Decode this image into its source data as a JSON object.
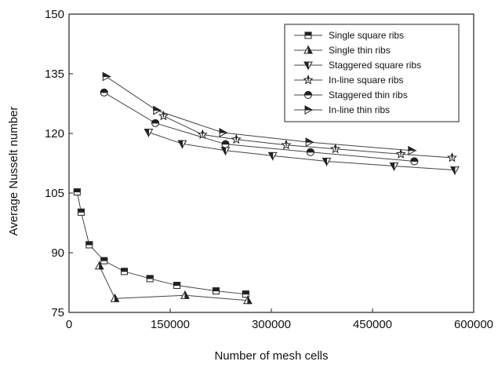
{
  "chart_data": {
    "type": "line",
    "xlabel": "Number of mesh cells",
    "ylabel": "Average Nusselt number",
    "xlim": [
      0,
      600000
    ],
    "ylim": [
      75,
      150
    ],
    "xticks": [
      0,
      150000,
      300000,
      450000,
      600000
    ],
    "yticks": [
      75,
      90,
      105,
      120,
      135,
      150
    ],
    "xtick_labels": [
      "0",
      "150000",
      "300000",
      "450000",
      "600000"
    ],
    "ytick_labels": [
      "75",
      "90",
      "105",
      "120",
      "135",
      "150"
    ],
    "grid": false,
    "legend_position": "top-right",
    "series": [
      {
        "name": "Single square ribs",
        "marker": "square",
        "x": [
          12000,
          18000,
          30000,
          52000,
          82000,
          120000,
          160000,
          218000,
          262000
        ],
        "y": [
          105.3,
          100.2,
          92.0,
          88.0,
          85.3,
          83.5,
          81.8,
          80.4,
          79.6
        ]
      },
      {
        "name": "Single thin ribs",
        "marker": "triangle-up",
        "x": [
          45000,
          68000,
          172000,
          265000
        ],
        "y": [
          86.7,
          78.5,
          79.3,
          78.0
        ]
      },
      {
        "name": "Staggered square ribs",
        "marker": "triangle-down",
        "x": [
          118000,
          168000,
          232000,
          302000,
          382000,
          482000,
          572000
        ],
        "y": [
          120.3,
          117.4,
          115.7,
          114.4,
          113.0,
          111.8,
          110.8
        ]
      },
      {
        "name": "In-line square ribs",
        "marker": "star",
        "x": [
          140000,
          198000,
          248000,
          322000,
          395000,
          492000,
          568000
        ],
        "y": [
          124.4,
          119.7,
          118.5,
          117.1,
          116.1,
          114.8,
          113.9
        ]
      },
      {
        "name": "Staggered thin ribs",
        "marker": "circle",
        "x": [
          52000,
          128000,
          232000,
          358000,
          512000
        ],
        "y": [
          130.3,
          122.6,
          117.3,
          115.3,
          113.0
        ]
      },
      {
        "name": "In-line thin ribs",
        "marker": "triangle-right",
        "x": [
          55000,
          130000,
          228000,
          356000,
          508000
        ],
        "y": [
          134.3,
          125.8,
          120.2,
          117.8,
          115.7
        ]
      }
    ]
  }
}
